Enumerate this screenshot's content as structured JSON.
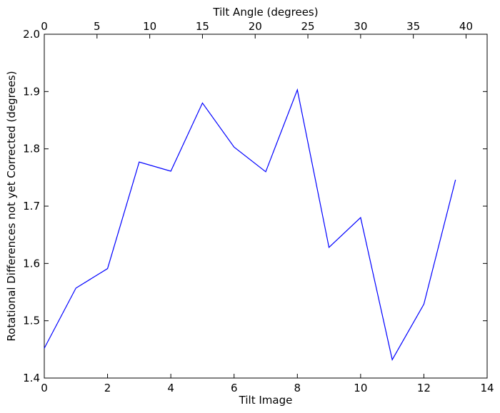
{
  "chart_data": {
    "type": "line",
    "xlabel": "Tilt Image",
    "x2label": "Tilt Angle (degrees)",
    "ylabel": "Rotational Differences not yet Corrected (degrees)",
    "xlim": [
      0,
      14
    ],
    "x2lim": [
      0,
      42
    ],
    "ylim": [
      1.4,
      2.0
    ],
    "grid": false,
    "xticks": [
      0,
      2,
      4,
      6,
      8,
      10,
      12,
      14
    ],
    "x2ticks": [
      0,
      5,
      10,
      15,
      20,
      25,
      30,
      35,
      40
    ],
    "yticks": [
      1.4,
      1.5,
      1.6,
      1.7,
      1.8,
      1.9,
      2.0
    ],
    "xtick_labels": [
      "0",
      "2",
      "4",
      "6",
      "8",
      "10",
      "12",
      "14"
    ],
    "x2tick_labels": [
      "0",
      "5",
      "10",
      "15",
      "20",
      "25",
      "30",
      "35",
      "40"
    ],
    "ytick_labels": [
      "1.4",
      "1.5",
      "1.6",
      "1.7",
      "1.8",
      "1.9",
      "2.0"
    ],
    "series": [
      {
        "color": "#0000ff",
        "x": [
          0,
          1,
          2,
          3,
          4,
          5,
          6,
          7,
          8,
          9,
          10,
          11,
          12,
          13
        ],
        "y": [
          1.452,
          1.557,
          1.591,
          1.777,
          1.761,
          1.88,
          1.803,
          1.76,
          1.903,
          1.628,
          1.68,
          1.432,
          1.529,
          1.746
        ]
      }
    ]
  }
}
